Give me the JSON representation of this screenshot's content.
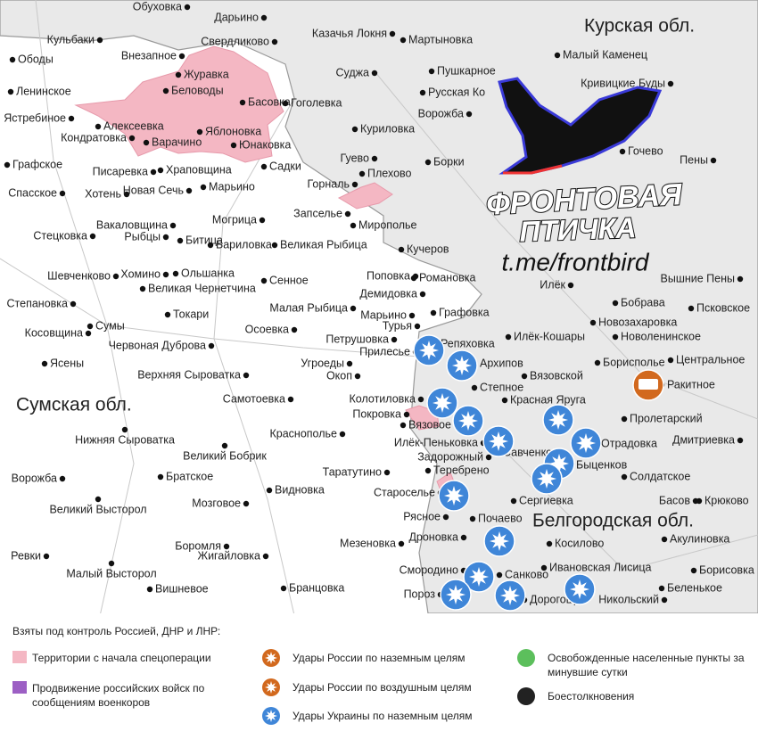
{
  "map": {
    "regions": [
      "Курская обл.",
      "Сумская обл.",
      "Белгородская обл."
    ],
    "places": [
      "Обуховка",
      "Дарьино",
      "Свердликово",
      "Казачья Локня",
      "Мартыновка",
      "Кульбаки",
      "Внезапное",
      "Ободы",
      "Журавка",
      "Беловоды",
      "Суджа",
      "Пушкарное",
      "Ленинское",
      "Русская Ко",
      "Басовка",
      "Гоголевка",
      "Ястребиное",
      "Алексеевка",
      "Ворожба",
      "Малый Каменец",
      "Кривицкие Буды",
      "Кондратовка",
      "Яблоновка",
      "Варачино",
      "Юнаковка",
      "Куриловка",
      "Гуево",
      "Борки",
      "Плехово",
      "Графское",
      "Писаревка",
      "Храповщина",
      "Садки",
      "Горналь",
      "Хотень",
      "Новая Сечь",
      "Марьино",
      "Спасское",
      "Гочево",
      "Запселье",
      "Мирополье",
      "Вакаловщина",
      "Рыбцы",
      "Стецковка",
      "Могрица",
      "Битица",
      "Бариловка",
      "Великая Рыбица",
      "Кучеров",
      "Шевченково",
      "Хомино",
      "Ольшанка",
      "Сенное",
      "Поповка",
      "Романовка",
      "Демидовка",
      "Великая Чернетчина",
      "Токари",
      "Степановка",
      "Малая Рыбица",
      "Марьино",
      "Графовка",
      "Сумы",
      "Косовщина",
      "Турья",
      "Осоевка",
      "Червоная Дуброва",
      "Петрушовка",
      "Прилесье",
      "Репяховка",
      "Илёк-Кошары",
      "Илёк",
      "Бобрава",
      "Новозахаровка",
      "Новоленинское",
      "Псковское",
      "Вышние Пены",
      "Пены",
      "Ясены",
      "Верхняя Сыроватка",
      "Угроеды",
      "Окоп",
      "Архипов",
      "Вязовской",
      "Борисполье",
      "Центральное",
      "Ракитное",
      "Самотоевка",
      "Колотиловка",
      "Степное",
      "Красная Яруга",
      "Покровка",
      "Вязовое",
      "Пролетарский",
      "Краснополье",
      "Нижняя Сыроватка",
      "Илёк-Пеньковка",
      "Отрадовка",
      "Дмитриевка",
      "Великий Бобрик",
      "Задорожный",
      "Савченко",
      "Быценков",
      "Теребрено",
      "Таратутино",
      "Солдатское",
      "Ворожба",
      "Братское",
      "Видновка",
      "Староселье",
      "Сергиевка",
      "Великий Высторол",
      "Мозговое",
      "Басов",
      "Крюково",
      "Рясное",
      "Почаево",
      "Боромля",
      "Дроновка",
      "Мезеновка",
      "Косилово",
      "Акулиновка",
      "Ревки",
      "Жигайловка",
      "Малый Высторол",
      "Смородино",
      "Санково",
      "Ивановская Лисица",
      "Борисовка",
      "Вишневое",
      "Бранцовка",
      "Пороз",
      "Дорогощь",
      "Никольский",
      "Беленькое"
    ]
  },
  "logo": {
    "title": "ФРОНТОВАЯ",
    "subtitle": "ПТИЧКА",
    "link": "t.me/frontbird"
  },
  "legend": {
    "heading": "Взяты под контроль Россией, ДНР и ЛНР:",
    "items": [
      "Территории с начала спецоперации",
      "Продвижение российских войск по сообщениям военкоров",
      "Удары России по наземным целям",
      "Удары России по воздушным целям",
      "Удары Украины по наземным целям",
      "Освобожденные населенные пункты за минувшие сутки",
      "Боестолкновения"
    ]
  }
}
